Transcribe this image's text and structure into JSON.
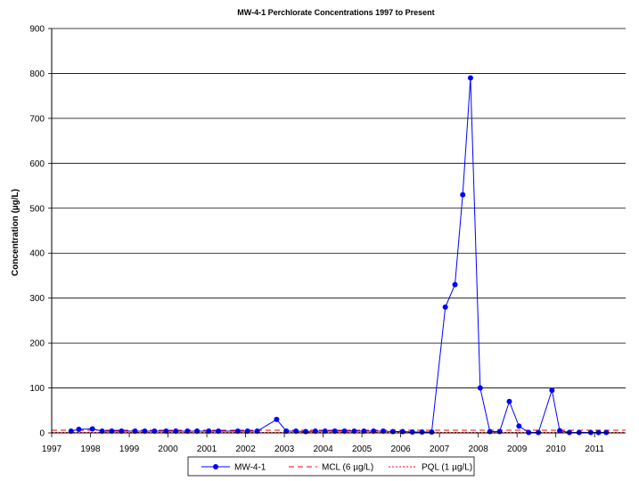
{
  "chart_data": {
    "type": "line",
    "title": "MW-4-1 Perchlorate Concentrations 1997 to Present",
    "xlabel": "",
    "ylabel": "Concentration  (µg/L)",
    "xlim": [
      1997,
      2011.8
    ],
    "ylim": [
      0,
      900
    ],
    "x_ticks": [
      1997,
      1998,
      1999,
      2000,
      2001,
      2002,
      2003,
      2004,
      2005,
      2006,
      2007,
      2008,
      2009,
      2010,
      2011
    ],
    "y_ticks": [
      0,
      100,
      200,
      300,
      400,
      500,
      600,
      700,
      800,
      900
    ],
    "grid": "horizontal",
    "legend_position": "bottom",
    "series": [
      {
        "name": "MW-4-1",
        "color": "#0000FF",
        "style": "line-with-circle-markers",
        "points": [
          [
            1997.5,
            4
          ],
          [
            1997.7,
            8
          ],
          [
            1998.05,
            9
          ],
          [
            1998.3,
            4
          ],
          [
            1998.55,
            4
          ],
          [
            1998.8,
            4
          ],
          [
            1999.15,
            4
          ],
          [
            1999.4,
            4
          ],
          [
            1999.65,
            4
          ],
          [
            1999.95,
            4
          ],
          [
            2000.2,
            4
          ],
          [
            2000.5,
            4
          ],
          [
            2000.75,
            4
          ],
          [
            2001.05,
            4
          ],
          [
            2001.3,
            4
          ],
          [
            2001.8,
            4
          ],
          [
            2002.05,
            4
          ],
          [
            2002.3,
            4
          ],
          [
            2002.8,
            30
          ],
          [
            2003.05,
            4
          ],
          [
            2003.3,
            4
          ],
          [
            2003.55,
            3
          ],
          [
            2003.8,
            4
          ],
          [
            2004.05,
            4
          ],
          [
            2004.3,
            4
          ],
          [
            2004.55,
            4
          ],
          [
            2004.8,
            4
          ],
          [
            2005.05,
            4
          ],
          [
            2005.3,
            4
          ],
          [
            2005.55,
            4
          ],
          [
            2005.8,
            3
          ],
          [
            2006.05,
            3
          ],
          [
            2006.3,
            2
          ],
          [
            2006.55,
            2
          ],
          [
            2006.8,
            2
          ],
          [
            2007.15,
            280
          ],
          [
            2007.4,
            330
          ],
          [
            2007.6,
            530
          ],
          [
            2007.8,
            790
          ],
          [
            2008.05,
            100
          ],
          [
            2008.3,
            3
          ],
          [
            2008.55,
            3
          ],
          [
            2008.8,
            70
          ],
          [
            2009.05,
            15
          ],
          [
            2009.3,
            1
          ],
          [
            2009.55,
            1
          ],
          [
            2009.9,
            95
          ],
          [
            2010.1,
            5
          ],
          [
            2010.35,
            1
          ],
          [
            2010.6,
            1
          ],
          [
            2010.9,
            1
          ],
          [
            2011.1,
            1
          ],
          [
            2011.3,
            1
          ]
        ]
      },
      {
        "name": "MCL (6 µg/L)",
        "color": "#FF0000",
        "style": "dashed",
        "y": 6
      },
      {
        "name": "PQL (1 µg/L)",
        "color": "#FF0000",
        "style": "dotted",
        "y": 1
      }
    ]
  }
}
